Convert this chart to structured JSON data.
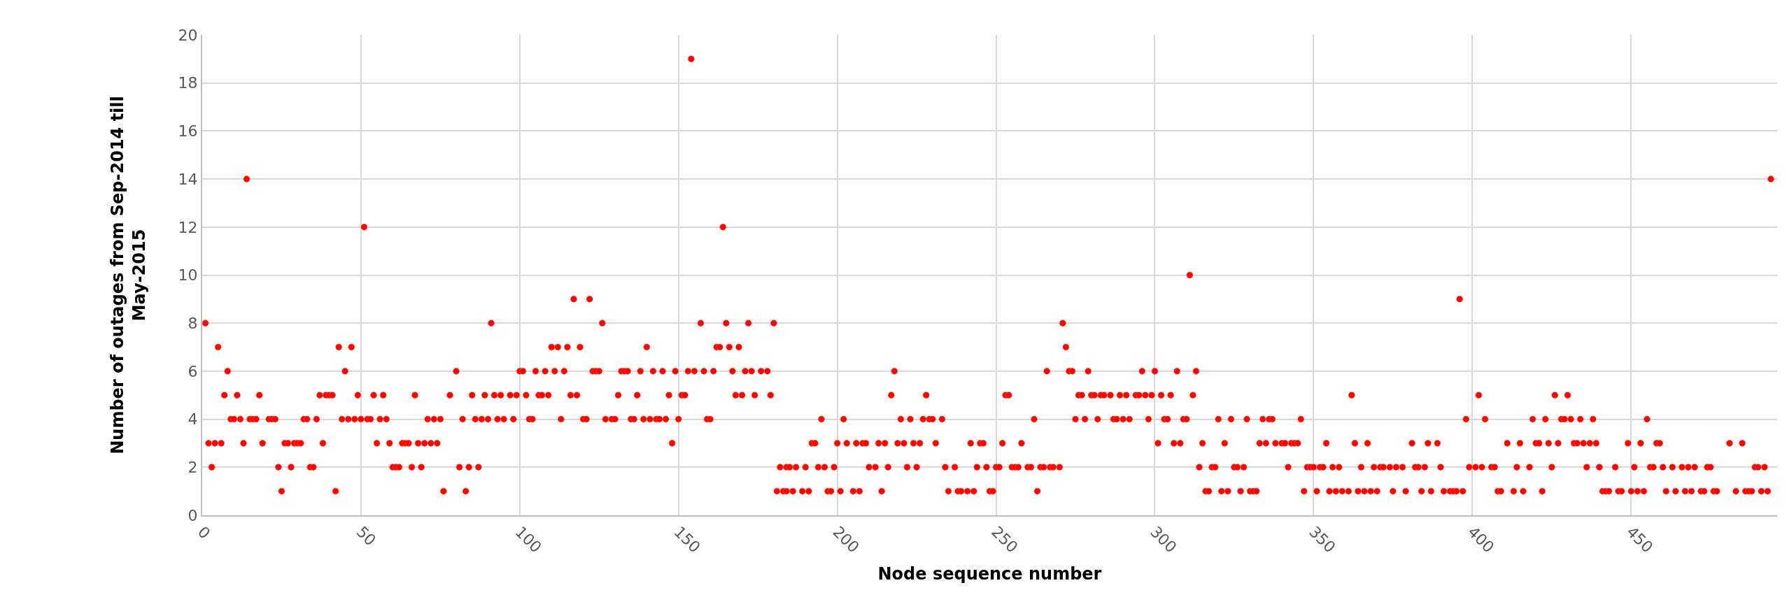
{
  "chart_data": {
    "type": "scatter",
    "xlabel": "Node sequence number",
    "ylabel": "Number of outages from Sep-2014 till\nMay-2015",
    "xlim": [
      0,
      496
    ],
    "xticks": [
      0,
      50,
      100,
      150,
      200,
      250,
      300,
      350,
      400,
      450
    ],
    "ylim": [
      0,
      20
    ],
    "yticks": [
      0,
      2,
      4,
      6,
      8,
      10,
      12,
      14,
      16,
      18,
      20
    ],
    "grid": true,
    "marker": "circle",
    "series": [
      {
        "color": "#ff0000",
        "x": [
          1,
          2,
          3,
          4,
          5,
          6,
          7,
          8,
          9,
          10,
          11,
          12,
          13,
          14,
          15,
          16,
          17,
          18,
          19,
          21,
          22,
          23,
          24,
          25,
          26,
          27,
          28,
          29,
          30,
          31,
          32,
          33,
          34,
          35,
          36,
          37,
          38,
          39,
          40,
          41,
          42,
          43,
          44,
          45,
          46,
          47,
          48,
          49,
          50,
          51,
          52,
          53,
          54,
          55,
          56,
          57,
          58,
          59,
          60,
          61,
          62,
          63,
          64,
          65,
          66,
          67,
          68,
          69,
          70,
          71,
          72,
          73,
          74,
          75,
          154,
          91,
          126,
          157,
          117,
          122,
          110,
          112,
          115,
          119,
          140,
          80,
          100,
          101,
          105,
          108,
          111,
          114,
          123,
          124,
          125,
          132,
          133,
          134,
          138,
          142,
          145,
          149,
          153,
          78,
          85,
          89,
          92,
          94,
          97,
          99,
          102,
          106,
          107,
          109,
          116,
          118,
          131,
          137,
          147,
          151,
          152,
          82,
          86,
          88,
          90,
          93,
          95,
          98,
          103,
          104,
          113,
          120,
          121,
          127,
          129,
          130,
          135,
          136,
          139,
          141,
          143,
          144,
          146,
          150,
          148,
          81,
          84,
          87,
          76,
          83,
          164,
          165,
          172,
          180,
          162,
          163,
          166,
          169,
          155,
          158,
          161,
          167,
          171,
          173,
          176,
          178,
          218,
          168,
          170,
          174,
          179,
          217,
          228,
          159,
          160,
          195,
          202,
          220,
          223,
          227,
          229,
          230,
          233,
          192,
          193,
          200,
          203,
          206,
          208,
          209,
          213,
          215,
          219,
          221,
          224,
          226,
          231,
          182,
          184,
          185,
          187,
          190,
          194,
          196,
          199,
          210,
          212,
          216,
          222,
          225,
          234,
          237,
          181,
          183,
          184,
          186,
          189,
          191,
          197,
          198,
          201,
          205,
          207,
          214,
          235,
          238,
          239,
          241,
          311,
          271,
          272,
          266,
          273,
          274,
          279,
          296,
          300,
          307,
          313,
          253,
          254,
          276,
          277,
          280,
          281,
          283,
          284,
          286,
          289,
          291,
          294,
          295,
          297,
          299,
          302,
          305,
          312,
          262,
          275,
          278,
          282,
          287,
          288,
          290,
          292,
          298,
          303,
          304,
          309,
          310,
          320,
          324,
          242,
          245,
          246,
          252,
          258,
          301,
          306,
          308,
          315,
          322,
          244,
          247,
          250,
          251,
          255,
          256,
          257,
          260,
          261,
          264,
          265,
          267,
          268,
          270,
          314,
          318,
          319,
          325,
          243,
          248,
          249,
          263,
          316,
          317,
          321,
          323,
          396,
          362,
          402,
          329,
          334,
          336,
          337,
          346,
          398,
          404,
          333,
          335,
          338,
          340,
          341,
          343,
          344,
          345,
          354,
          363,
          367,
          381,
          386,
          389,
          326,
          328,
          342,
          348,
          349,
          350,
          352,
          353,
          356,
          358,
          365,
          369,
          371,
          372,
          374,
          376,
          378,
          382,
          383,
          385,
          390,
          399,
          401,
          403,
          406,
          407,
          327,
          330,
          331,
          332,
          347,
          351,
          355,
          357,
          359,
          361,
          364,
          366,
          368,
          370,
          375,
          379,
          384,
          387,
          391,
          393,
          394,
          395,
          397,
          408,
          494,
          426,
          430,
          419,
          423,
          428,
          429,
          431,
          434,
          438,
          455,
          411,
          415,
          420,
          421,
          424,
          427,
          432,
          433,
          435,
          437,
          439,
          449,
          453,
          458,
          459,
          481,
          485,
          414,
          418,
          425,
          436,
          440,
          445,
          451,
          456,
          457,
          460,
          463,
          466,
          468,
          470,
          474,
          475,
          489,
          490,
          492,
          409,
          413,
          416,
          422,
          441,
          442,
          443,
          446,
          447,
          450,
          452,
          454,
          461,
          464,
          467,
          469,
          472,
          473,
          476,
          477,
          483,
          486,
          487,
          488,
          491,
          493
        ],
        "values": [
          8,
          3,
          2,
          3,
          7,
          3,
          5,
          6,
          4,
          4,
          5,
          4,
          3,
          14,
          4,
          4,
          4,
          5,
          3,
          4,
          4,
          4,
          2,
          1,
          3,
          3,
          2,
          3,
          3,
          3,
          4,
          4,
          2,
          2,
          4,
          5,
          3,
          5,
          5,
          5,
          1,
          7,
          4,
          6,
          4,
          7,
          4,
          5,
          4,
          12,
          4,
          4,
          5,
          3,
          4,
          5,
          4,
          3,
          2,
          2,
          2,
          3,
          3,
          3,
          2,
          5,
          3,
          2,
          3,
          4,
          3,
          4,
          3,
          4,
          19,
          8,
          8,
          8,
          9,
          9,
          7,
          7,
          7,
          7,
          7,
          6,
          6,
          6,
          6,
          6,
          6,
          6,
          6,
          6,
          6,
          6,
          6,
          6,
          6,
          6,
          6,
          6,
          6,
          5,
          5,
          5,
          5,
          5,
          5,
          5,
          5,
          5,
          5,
          5,
          5,
          5,
          5,
          5,
          5,
          5,
          5,
          4,
          4,
          4,
          4,
          4,
          4,
          4,
          4,
          4,
          4,
          4,
          4,
          4,
          4,
          4,
          4,
          4,
          4,
          4,
          4,
          4,
          4,
          4,
          3,
          2,
          2,
          2,
          1,
          1,
          12,
          8,
          8,
          8,
          7,
          7,
          7,
          7,
          6,
          6,
          6,
          6,
          6,
          6,
          6,
          6,
          6,
          5,
          5,
          5,
          5,
          5,
          5,
          4,
          4,
          4,
          4,
          4,
          4,
          4,
          4,
          4,
          4,
          3,
          3,
          3,
          3,
          3,
          3,
          3,
          3,
          3,
          3,
          3,
          3,
          3,
          3,
          2,
          2,
          2,
          2,
          2,
          2,
          2,
          2,
          2,
          2,
          2,
          2,
          2,
          2,
          2,
          1,
          1,
          1,
          1,
          1,
          1,
          1,
          1,
          1,
          1,
          1,
          1,
          1,
          1,
          1,
          1,
          10,
          8,
          7,
          6,
          6,
          6,
          6,
          6,
          6,
          6,
          6,
          5,
          5,
          5,
          5,
          5,
          5,
          5,
          5,
          5,
          5,
          5,
          5,
          5,
          5,
          5,
          5,
          5,
          5,
          4,
          4,
          4,
          4,
          4,
          4,
          4,
          4,
          4,
          4,
          4,
          4,
          4,
          4,
          4,
          3,
          3,
          3,
          3,
          3,
          3,
          3,
          3,
          3,
          3,
          2,
          2,
          2,
          2,
          2,
          2,
          2,
          2,
          2,
          2,
          2,
          2,
          2,
          2,
          2,
          2,
          2,
          2,
          1,
          1,
          1,
          1,
          1,
          1,
          1,
          1,
          9,
          5,
          5,
          4,
          4,
          4,
          4,
          4,
          4,
          4,
          3,
          3,
          3,
          3,
          3,
          3,
          3,
          3,
          3,
          3,
          3,
          3,
          3,
          3,
          2,
          2,
          2,
          2,
          2,
          2,
          2,
          2,
          2,
          2,
          2,
          2,
          2,
          2,
          2,
          2,
          2,
          2,
          2,
          2,
          2,
          2,
          2,
          2,
          2,
          2,
          1,
          1,
          1,
          1,
          1,
          1,
          1,
          1,
          1,
          1,
          1,
          1,
          1,
          1,
          1,
          1,
          1,
          1,
          1,
          1,
          1,
          1,
          1,
          1,
          14,
          5,
          5,
          4,
          4,
          4,
          4,
          4,
          4,
          4,
          4,
          3,
          3,
          3,
          3,
          3,
          3,
          3,
          3,
          3,
          3,
          3,
          3,
          3,
          3,
          3,
          3,
          3,
          2,
          2,
          2,
          2,
          2,
          2,
          2,
          2,
          2,
          2,
          2,
          2,
          2,
          2,
          2,
          2,
          2,
          2,
          2,
          1,
          1,
          1,
          1,
          1,
          1,
          1,
          1,
          1,
          1,
          1,
          1,
          1,
          1,
          1,
          1,
          1,
          1,
          1,
          1,
          1,
          1,
          1,
          1,
          1,
          1
        ]
      }
    ]
  }
}
